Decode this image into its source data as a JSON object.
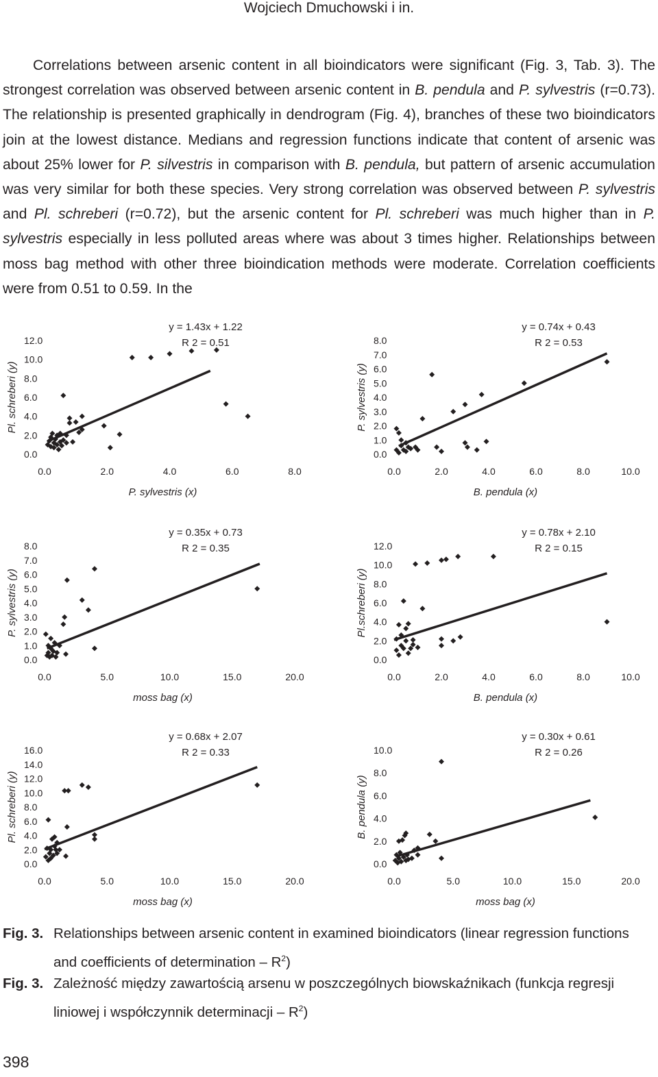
{
  "header": {
    "running_title": "Wojciech Dmuchowski i in."
  },
  "body_paragraph": [
    {
      "t": "Correlations between arsenic content in all bioindicators were significant (Fig. 3, Tab. 3). The strongest correlation was observed between arsenic content in ",
      "i": false
    },
    {
      "t": "B. pendula",
      "i": true
    },
    {
      "t": " and ",
      "i": false
    },
    {
      "t": "P. sylvestris",
      "i": true
    },
    {
      "t": " (r=0.73). The relationship is presented graphically in dendrogram (Fig. 4), branches of these two bioindicators join at the lowest distance. Medians and regression functions indicate that content of arsenic was about 25% lower for ",
      "i": false
    },
    {
      "t": "P. silvestris",
      "i": true
    },
    {
      "t": " in comparison with ",
      "i": false
    },
    {
      "t": "B. pendula,",
      "i": true
    },
    {
      "t": " but pattern of arsenic accumulation was very similar for both these species. Very strong correlation was observed between ",
      "i": false
    },
    {
      "t": "P. sylvestris",
      "i": true
    },
    {
      "t": " and ",
      "i": false
    },
    {
      "t": "Pl. schreberi",
      "i": true
    },
    {
      "t": " (r=0.72), but the arsenic content for ",
      "i": false
    },
    {
      "t": "Pl. schreberi",
      "i": true
    },
    {
      "t": " was much higher than in ",
      "i": false
    },
    {
      "t": "P. sylvestris",
      "i": true
    },
    {
      "t": " especially in less polluted areas where was about 3 times higher. Relationships between moss bag method with other three bioindication methods were moderate. Correlation coefficients were from 0.51 to 0.59. In the",
      "i": false
    }
  ],
  "chart_data": [
    {
      "type": "scatter",
      "xlabel": "P. sylvestris (x)",
      "ylabel": "Pl. schreberi (y)",
      "xlim": [
        0,
        8
      ],
      "ylim": [
        0,
        12
      ],
      "xticks": [
        "0.0",
        "2.0",
        "4.0",
        "6.0",
        "8.0"
      ],
      "yticks": [
        "0.0",
        "2.0",
        "4.0",
        "6.0",
        "8.0",
        "10.0",
        "12.0"
      ],
      "equation": "y = 1.43x + 1.22",
      "r2": "R 2 = 0.51",
      "slope": 1.43,
      "intercept": 1.22,
      "line_x": [
        0.1,
        5.3
      ],
      "points": [
        [
          0.1,
          1.0
        ],
        [
          0.15,
          1.4
        ],
        [
          0.2,
          0.8
        ],
        [
          0.2,
          1.8
        ],
        [
          0.25,
          2.2
        ],
        [
          0.3,
          1.2
        ],
        [
          0.3,
          0.7
        ],
        [
          0.35,
          1.6
        ],
        [
          0.4,
          2.0
        ],
        [
          0.4,
          1.0
        ],
        [
          0.45,
          0.5
        ],
        [
          0.5,
          1.3
        ],
        [
          0.5,
          2.2
        ],
        [
          0.55,
          0.9
        ],
        [
          0.6,
          1.5
        ],
        [
          0.6,
          6.2
        ],
        [
          0.7,
          1.2
        ],
        [
          0.7,
          2.0
        ],
        [
          0.8,
          3.3
        ],
        [
          0.8,
          3.8
        ],
        [
          0.9,
          1.3
        ],
        [
          1.0,
          3.4
        ],
        [
          1.1,
          2.3
        ],
        [
          1.2,
          4.0
        ],
        [
          1.2,
          2.6
        ],
        [
          1.9,
          3.0
        ],
        [
          2.1,
          0.7
        ],
        [
          2.4,
          2.1
        ],
        [
          2.8,
          10.2
        ],
        [
          3.4,
          10.2
        ],
        [
          4.0,
          10.6
        ],
        [
          4.7,
          10.9
        ],
        [
          5.5,
          11.0
        ],
        [
          5.8,
          5.3
        ],
        [
          6.5,
          4.0
        ]
      ]
    },
    {
      "type": "scatter",
      "xlabel": "B. pendula (x)",
      "ylabel": "P. sylvestris (y)",
      "xlim": [
        0,
        10
      ],
      "ylim": [
        0,
        8
      ],
      "xticks": [
        "0.0",
        "2.0",
        "4.0",
        "6.0",
        "8.0",
        "10.0"
      ],
      "yticks": [
        "0.0",
        "1.0",
        "2.0",
        "3.0",
        "4.0",
        "5.0",
        "6.0",
        "7.0",
        "8.0"
      ],
      "equation": "y = 0.74x + 0.43",
      "r2": "R 2 = 0.53",
      "slope": 0.74,
      "intercept": 0.43,
      "line_x": [
        0.2,
        9.0
      ],
      "points": [
        [
          0.1,
          1.8
        ],
        [
          0.1,
          0.3
        ],
        [
          0.2,
          1.5
        ],
        [
          0.2,
          0.1
        ],
        [
          0.3,
          0.6
        ],
        [
          0.3,
          1.0
        ],
        [
          0.4,
          0.3
        ],
        [
          0.5,
          0.8
        ],
        [
          0.5,
          0.2
        ],
        [
          0.6,
          0.5
        ],
        [
          0.7,
          0.4
        ],
        [
          0.9,
          0.5
        ],
        [
          1.0,
          0.3
        ],
        [
          1.2,
          2.5
        ],
        [
          1.6,
          5.6
        ],
        [
          1.8,
          0.5
        ],
        [
          2.0,
          0.2
        ],
        [
          2.5,
          3.0
        ],
        [
          3.0,
          3.5
        ],
        [
          3.0,
          0.8
        ],
        [
          3.1,
          0.5
        ],
        [
          3.5,
          0.3
        ],
        [
          3.7,
          4.2
        ],
        [
          3.9,
          0.9
        ],
        [
          5.5,
          5.0
        ],
        [
          9.0,
          6.5
        ]
      ]
    },
    {
      "type": "scatter",
      "xlabel": "moss bag (x)",
      "ylabel": "P. sylvestris (y)",
      "xlim": [
        0,
        20
      ],
      "ylim": [
        0,
        8
      ],
      "xticks": [
        "0.0",
        "5.0",
        "10.0",
        "15.0",
        "20.0"
      ],
      "yticks": [
        "0.0",
        "1.0",
        "2.0",
        "3.0",
        "4.0",
        "5.0",
        "6.0",
        "7.0",
        "8.0"
      ],
      "equation": "y = 0.35x + 0.73",
      "r2": "R 2 = 0.35",
      "slope": 0.35,
      "intercept": 0.73,
      "line_x": [
        0.2,
        17.2
      ],
      "points": [
        [
          0.1,
          1.8
        ],
        [
          0.2,
          0.3
        ],
        [
          0.3,
          1.0
        ],
        [
          0.3,
          0.5
        ],
        [
          0.4,
          0.2
        ],
        [
          0.5,
          1.5
        ],
        [
          0.5,
          0.8
        ],
        [
          0.6,
          0.3
        ],
        [
          0.7,
          0.6
        ],
        [
          0.8,
          1.2
        ],
        [
          0.9,
          0.2
        ],
        [
          1.0,
          0.5
        ],
        [
          1.2,
          1.0
        ],
        [
          1.5,
          2.5
        ],
        [
          1.6,
          3.0
        ],
        [
          1.7,
          0.4
        ],
        [
          1.8,
          5.6
        ],
        [
          3.0,
          4.2
        ],
        [
          3.5,
          3.5
        ],
        [
          4.0,
          6.4
        ],
        [
          4.0,
          0.8
        ],
        [
          17.0,
          5.0
        ]
      ]
    },
    {
      "type": "scatter",
      "xlabel": "B. pendula (x)",
      "ylabel": "Pl.schreberi (y)",
      "xlim": [
        0,
        10
      ],
      "ylim": [
        0,
        12
      ],
      "xticks": [
        "0.0",
        "2.0",
        "4.0",
        "6.0",
        "8.0",
        "10.0"
      ],
      "yticks": [
        "0.0",
        "2.0",
        "4.0",
        "6.0",
        "8.0",
        "10.0",
        "12.0"
      ],
      "equation": "y = 0.78x + 2.10",
      "r2": "R 2 = 0.15",
      "slope": 0.78,
      "intercept": 2.1,
      "line_x": [
        0.0,
        9.0
      ],
      "points": [
        [
          0.1,
          1.0
        ],
        [
          0.1,
          2.2
        ],
        [
          0.2,
          3.7
        ],
        [
          0.2,
          0.5
        ],
        [
          0.3,
          1.5
        ],
        [
          0.3,
          2.6
        ],
        [
          0.4,
          1.2
        ],
        [
          0.4,
          6.2
        ],
        [
          0.5,
          2.0
        ],
        [
          0.5,
          3.3
        ],
        [
          0.6,
          0.7
        ],
        [
          0.6,
          3.8
        ],
        [
          0.7,
          1.2
        ],
        [
          0.8,
          1.6
        ],
        [
          0.8,
          2.1
        ],
        [
          0.9,
          10.1
        ],
        [
          1.0,
          1.3
        ],
        [
          1.2,
          5.4
        ],
        [
          1.4,
          10.2
        ],
        [
          2.0,
          10.5
        ],
        [
          2.0,
          1.5
        ],
        [
          2.0,
          2.2
        ],
        [
          2.2,
          10.6
        ],
        [
          2.5,
          2.0
        ],
        [
          2.7,
          10.9
        ],
        [
          2.8,
          2.4
        ],
        [
          4.2,
          10.9
        ],
        [
          9.0,
          4.0
        ]
      ]
    },
    {
      "type": "scatter",
      "xlabel": "moss bag (x)",
      "ylabel": "Pl. schreberi (y)",
      "xlim": [
        0,
        20
      ],
      "ylim": [
        0,
        16
      ],
      "xticks": [
        "0.0",
        "5.0",
        "10.0",
        "15.0",
        "20.0"
      ],
      "yticks": [
        "0.0",
        "2.0",
        "4.0",
        "6.0",
        "8.0",
        "10.0",
        "12.0",
        "14.0",
        "16.0"
      ],
      "equation": "y = 0.68x + 2.07",
      "r2": "R 2 = 0.33",
      "slope": 0.68,
      "intercept": 2.07,
      "line_x": [
        0.0,
        17.0
      ],
      "points": [
        [
          0.1,
          1.0
        ],
        [
          0.2,
          2.2
        ],
        [
          0.3,
          0.5
        ],
        [
          0.3,
          6.2
        ],
        [
          0.4,
          1.5
        ],
        [
          0.5,
          2.0
        ],
        [
          0.5,
          0.8
        ],
        [
          0.6,
          3.5
        ],
        [
          0.7,
          1.2
        ],
        [
          0.8,
          2.5
        ],
        [
          0.8,
          3.8
        ],
        [
          0.9,
          2.0
        ],
        [
          1.0,
          3.0
        ],
        [
          1.0,
          1.5
        ],
        [
          1.2,
          2.0
        ],
        [
          1.6,
          10.3
        ],
        [
          1.7,
          1.1
        ],
        [
          1.8,
          5.2
        ],
        [
          1.9,
          10.3
        ],
        [
          3.0,
          11.1
        ],
        [
          3.5,
          10.8
        ],
        [
          4.0,
          3.5
        ],
        [
          4.0,
          4.1
        ],
        [
          17.0,
          11.1
        ]
      ]
    },
    {
      "type": "scatter",
      "xlabel": "moss bag (x)",
      "ylabel": "B. pendula (y)",
      "xlim": [
        0,
        20
      ],
      "ylim": [
        0,
        10
      ],
      "xticks": [
        "0.0",
        "5.0",
        "10.0",
        "15.0",
        "20.0"
      ],
      "yticks": [
        "0.0",
        "2.0",
        "4.0",
        "6.0",
        "8.0",
        "10.0"
      ],
      "equation": "y = 0.30x + 0.61",
      "r2": "R 2 = 0.26",
      "slope": 0.3,
      "intercept": 0.61,
      "line_x": [
        0.2,
        16.6
      ],
      "points": [
        [
          0.1,
          0.3
        ],
        [
          0.2,
          0.8
        ],
        [
          0.3,
          0.1
        ],
        [
          0.4,
          2.0
        ],
        [
          0.4,
          0.5
        ],
        [
          0.5,
          1.0
        ],
        [
          0.6,
          0.2
        ],
        [
          0.7,
          2.1
        ],
        [
          0.8,
          0.6
        ],
        [
          0.9,
          2.5
        ],
        [
          1.0,
          0.3
        ],
        [
          1.0,
          2.7
        ],
        [
          1.1,
          0.8
        ],
        [
          1.2,
          0.4
        ],
        [
          1.5,
          0.5
        ],
        [
          1.7,
          1.2
        ],
        [
          2.0,
          0.8
        ],
        [
          2.0,
          1.4
        ],
        [
          3.0,
          2.6
        ],
        [
          3.5,
          2.0
        ],
        [
          4.0,
          0.5
        ],
        [
          4.0,
          9.0
        ],
        [
          17.0,
          4.1
        ]
      ]
    }
  ],
  "captions": [
    {
      "label": "Fig. 3.",
      "text_before": "Relationships between arsenic content in examined bioindicators (linear regression functions and coefficients of determination – R",
      "sup": "2",
      "text_after": ")"
    },
    {
      "label": "Fig. 3.",
      "text_before": "Zależność między zawartością arsenu w poszczególnych biowskaźnikach (funkcja regresji liniowej i współczynnik determinacji – R",
      "sup": "2",
      "text_after": ")"
    }
  ],
  "page_number": "398"
}
